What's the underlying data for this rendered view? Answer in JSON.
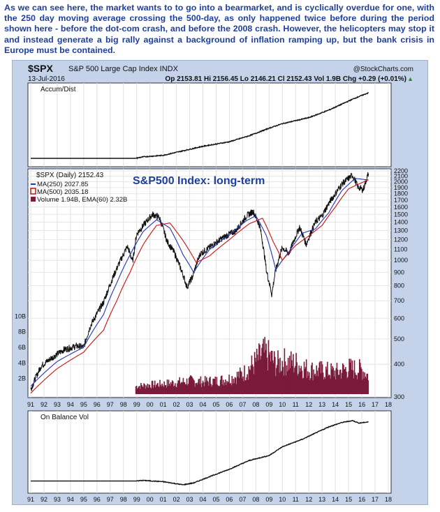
{
  "intro_text": "As we can see here, the market wants to to go into a bearmarket, and is cyclically overdue for one, with the 250 day moving average crossing the 500-day, as only happened twice before during the period shown here - before the dot-com crash, and before the 2008 crash. However, the helicopters may stop it and instead generate a big rally against a background of inflation ramping up, but the bank crisis in Europe must be contained.",
  "header": {
    "symbol": "$SPX",
    "name": "S&P 500 Large Cap Index INDX",
    "date": "13-Jul-2016",
    "credit": "@StockCharts.com",
    "quote": "Op 2153.81  Hi 2156.45  Lo 2146.21  Cl 2152.43  Vol 1.9B  Chg +0.29 (+0.01%)",
    "chg_arrow": "▲"
  },
  "colors": {
    "price": "#111111",
    "ma250": "#2233bb",
    "ma500": "#cc1111",
    "volume": "#7b1b3a",
    "title_blue": "#1f3f9e",
    "frame": "#c4d3ea"
  },
  "chart_data": [
    {
      "panel": "Accum/Dist",
      "type": "line",
      "title": "Accum/Dist",
      "x": [
        1991,
        1998.9,
        1999.5,
        2001,
        2003,
        2004,
        2006,
        2007.5,
        2009,
        2010,
        2012,
        2013.5,
        2014.5,
        2015.5,
        2016.5
      ],
      "y": [
        0.0,
        0.0,
        0.02,
        0.04,
        0.12,
        0.16,
        0.22,
        0.3,
        0.4,
        0.46,
        0.54,
        0.64,
        0.72,
        0.8,
        0.87
      ],
      "note": "unscaled indicator"
    },
    {
      "panel": "Price",
      "type": "line",
      "title": "S&P500 Index: long-term",
      "legend": [
        "$SPX (Daily) 2152.43",
        "MA(250) 2027.85",
        "MA(500) 2035.18",
        "Volume 1.94B, EMA(60) 2.32B"
      ],
      "legend_position": "top-left",
      "y_scale": "log",
      "ylim": [
        300,
        2200
      ],
      "y_ticks": [
        300,
        400,
        500,
        600,
        700,
        800,
        900,
        1000,
        1100,
        1200,
        1300,
        1400,
        1500,
        1600,
        1700,
        1800,
        1900,
        2000,
        2100,
        2200
      ],
      "volume_ticks": [
        "2B",
        "4B",
        "6B",
        "8B",
        "10B"
      ],
      "series": [
        {
          "name": "$SPX (Daily) 2152.43",
          "x": [
            1991,
            1991.8,
            1992.5,
            1993.5,
            1994.5,
            1995.0,
            1995.5,
            1996.5,
            1997.5,
            1998.3,
            1998.7,
            1999.0,
            1999.5,
            2000.2,
            2000.7,
            2001.3,
            2001.8,
            2002.5,
            2002.8,
            2003.2,
            2003.8,
            2004.5,
            2005.5,
            2006.5,
            2007.3,
            2007.8,
            2008.3,
            2008.8,
            2009.2,
            2009.5,
            2010.0,
            2010.5,
            2011.3,
            2011.8,
            2012.5,
            2013.0,
            2013.5,
            2014.0,
            2014.5,
            2015.3,
            2015.7,
            2016.1,
            2016.5
          ],
          "y": [
            320,
            395,
            420,
            455,
            470,
            465,
            560,
            690,
            930,
            1130,
            990,
            1260,
            1360,
            1500,
            1460,
            1180,
            1080,
            880,
            790,
            860,
            1060,
            1120,
            1220,
            1300,
            1480,
            1540,
            1350,
            910,
            740,
            920,
            1120,
            1060,
            1340,
            1150,
            1400,
            1480,
            1650,
            1800,
            1960,
            2120,
            1910,
            1860,
            2152
          ]
        },
        {
          "name": "MA(250) 2027.85",
          "x": [
            1991,
            1993,
            1995,
            1996.5,
            1997.5,
            1998.5,
            1999.5,
            2000.5,
            2001.5,
            2002.5,
            2003.3,
            2004.5,
            2006,
            2007.3,
            2008.0,
            2008.8,
            2009.5,
            2010.5,
            2011.5,
            2012.5,
            2013.5,
            2014.5,
            2015.5,
            2016.5
          ],
          "y": [
            330,
            410,
            465,
            620,
            820,
            1050,
            1290,
            1430,
            1330,
            1050,
            900,
            1100,
            1250,
            1420,
            1480,
            1240,
            920,
            1080,
            1270,
            1320,
            1520,
            1850,
            2060,
            2030
          ]
        },
        {
          "name": "MA(500) 2035.18",
          "x": [
            1991,
            1993,
            1995,
            1996.5,
            1997.5,
            1998.5,
            1999.5,
            2000.5,
            2001.5,
            2002.5,
            2003.5,
            2004.5,
            2006,
            2007.5,
            2008.5,
            2009.3,
            2010,
            2011,
            2012,
            2013,
            2014,
            2015,
            2016.5
          ],
          "y": [
            310,
            385,
            445,
            540,
            700,
            900,
            1150,
            1360,
            1390,
            1190,
            980,
            1040,
            1200,
            1380,
            1450,
            1180,
            1000,
            1140,
            1240,
            1360,
            1600,
            1880,
            2035
          ]
        }
      ]
    },
    {
      "panel": "Volume",
      "type": "bar",
      "x": [
        1998.9,
        2000,
        2001,
        2002,
        2003,
        2004,
        2005,
        2006,
        2007,
        2007.5,
        2008,
        2008.5,
        2009,
        2009.5,
        2010,
        2011,
        2012,
        2013,
        2014,
        2015,
        2016,
        2016.5
      ],
      "y": [
        1.0,
        1.2,
        1.3,
        1.5,
        1.7,
        1.6,
        1.7,
        2.0,
        2.6,
        3.4,
        4.2,
        5.2,
        4.8,
        3.8,
        4.2,
        3.9,
        3.1,
        3.0,
        2.8,
        3.3,
        3.1,
        2.3
      ],
      "ylabel": "B"
    },
    {
      "panel": "On Balance Vol",
      "type": "line",
      "title": "On Balance Vol",
      "x": [
        1991,
        1998.9,
        1999.5,
        2001,
        2002.5,
        2003.3,
        2004.5,
        2006,
        2007.5,
        2009,
        2010,
        2011.5,
        2012.5,
        2013.5,
        2014.5,
        2015.3,
        2015.8,
        2016.5
      ],
      "y": [
        0.03,
        0.03,
        0.04,
        0.02,
        -0.03,
        0.0,
        0.1,
        0.22,
        0.36,
        0.44,
        0.58,
        0.7,
        0.8,
        0.9,
        0.97,
        1.0,
        0.96,
        0.98
      ],
      "note": "unscaled indicator"
    }
  ],
  "x_axis": {
    "labels": [
      "91",
      "92",
      "93",
      "94",
      "95",
      "96",
      "97",
      "98",
      "99",
      "00",
      "01",
      "02",
      "03",
      "04",
      "05",
      "06",
      "07",
      "08",
      "09",
      "10",
      "11",
      "12",
      "13",
      "14",
      "15",
      "16",
      "17",
      "18"
    ],
    "start_year": 1991,
    "end_year": 2018
  }
}
